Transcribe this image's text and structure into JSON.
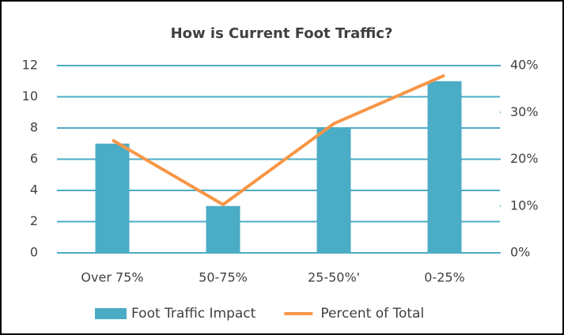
{
  "chart_data": {
    "type": "bar",
    "title": "How is Current Foot Traffic?",
    "categories": [
      "Over 75%",
      "50-75%",
      "25-50%'",
      "0-25%"
    ],
    "series": [
      {
        "name": "Foot Traffic Impact",
        "type": "bar",
        "color": "#4bacc6",
        "values": [
          7,
          3,
          8,
          11
        ]
      },
      {
        "name": "Percent of Total",
        "type": "line",
        "axis": "y2",
        "color": "#f79646",
        "values": [
          24.1,
          10.3,
          27.6,
          37.9
        ]
      }
    ],
    "ylim": [
      0,
      12
    ],
    "yticks": [
      0,
      2,
      4,
      6,
      8,
      10,
      12
    ],
    "y2lim": [
      0,
      40
    ],
    "y2ticks": [
      {
        "value": 0,
        "label": "0%"
      },
      {
        "value": 10,
        "label": "10%"
      },
      {
        "value": 20,
        "label": "20%"
      },
      {
        "value": 30,
        "label": "30%"
      },
      {
        "value": 40,
        "label": "40%"
      }
    ],
    "grid": true,
    "legend": "bottom"
  }
}
